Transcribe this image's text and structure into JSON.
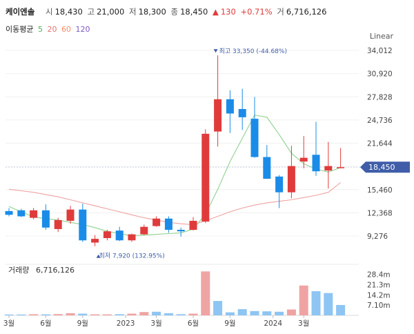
{
  "header": {
    "name": "케이엔솔",
    "open_label": "시",
    "open": "18,430",
    "high_label": "고",
    "high": "21,000",
    "low_label": "저",
    "low": "18,300",
    "close_label": "종",
    "close": "18,450",
    "change_arrow": "▲",
    "change": "130",
    "change_pct": "+0.71%",
    "volume_label": "거",
    "volume": "6,716,126"
  },
  "ma_legend": {
    "label": "이동평균",
    "items": [
      {
        "period": "5",
        "color": "#4caf50"
      },
      {
        "period": "20",
        "color": "#e57373"
      },
      {
        "period": "60",
        "color": "#ff8a65"
      },
      {
        "period": "120",
        "color": "#7e57c2"
      }
    ]
  },
  "scale_mode": "Linear",
  "colors": {
    "up": "#e03b3b",
    "down": "#1a8ce8",
    "ma5": "#8fd18f",
    "ma20": "#f0a0a0",
    "badge": "#3f5da8"
  },
  "chart_data": {
    "type": "candlestick",
    "title": "케이엔솔",
    "price_axis": {
      "ticks": [
        9276,
        12368,
        15460,
        18552,
        21644,
        24736,
        27828,
        30920,
        34012
      ],
      "tick_labels": [
        "9,276",
        "12,368",
        "15,460",
        "",
        "21,644",
        "24,736",
        "27,828",
        "30,920",
        "34,012"
      ],
      "range": [
        6400,
        35300
      ]
    },
    "current_price": {
      "value": 18450,
      "label": "18,450"
    },
    "high_marker": {
      "value": 33350,
      "label": "최고 33,350 (-44.68%)",
      "index": 17
    },
    "low_marker": {
      "value": 7920,
      "label": "최저 7,920 (132.95%)",
      "index": 7
    },
    "candles": [
      {
        "o": 12600,
        "h": 13000,
        "l": 11900,
        "c": 12100
      },
      {
        "o": 12700,
        "h": 12900,
        "l": 11800,
        "c": 11900
      },
      {
        "o": 11700,
        "h": 13000,
        "l": 11500,
        "c": 12700
      },
      {
        "o": 12700,
        "h": 13500,
        "l": 10100,
        "c": 10400
      },
      {
        "o": 10200,
        "h": 11700,
        "l": 9800,
        "c": 11400
      },
      {
        "o": 11300,
        "h": 13300,
        "l": 10900,
        "c": 12800
      },
      {
        "o": 12800,
        "h": 13600,
        "l": 8500,
        "c": 8700
      },
      {
        "o": 8400,
        "h": 9400,
        "l": 7920,
        "c": 8900
      },
      {
        "o": 9000,
        "h": 10100,
        "l": 8700,
        "c": 9900
      },
      {
        "o": 10000,
        "h": 10500,
        "l": 8600,
        "c": 8700
      },
      {
        "o": 8700,
        "h": 9600,
        "l": 8500,
        "c": 9500
      },
      {
        "o": 9500,
        "h": 10800,
        "l": 9400,
        "c": 10500
      },
      {
        "o": 10600,
        "h": 11900,
        "l": 10500,
        "c": 11600
      },
      {
        "o": 11600,
        "h": 11900,
        "l": 9700,
        "c": 10100
      },
      {
        "o": 10100,
        "h": 10400,
        "l": 9200,
        "c": 9900
      },
      {
        "o": 10100,
        "h": 11800,
        "l": 10000,
        "c": 11300
      },
      {
        "o": 11200,
        "h": 23500,
        "l": 11000,
        "c": 22900
      },
      {
        "o": 23200,
        "h": 33350,
        "l": 21200,
        "c": 27500
      },
      {
        "o": 27500,
        "h": 28700,
        "l": 23000,
        "c": 25600
      },
      {
        "o": 26200,
        "h": 28900,
        "l": 23400,
        "c": 25100
      },
      {
        "o": 24900,
        "h": 27800,
        "l": 19700,
        "c": 19800
      },
      {
        "o": 19800,
        "h": 21400,
        "l": 16900,
        "c": 16900
      },
      {
        "o": 17200,
        "h": 17400,
        "l": 13000,
        "c": 15100
      },
      {
        "o": 15100,
        "h": 21300,
        "l": 14300,
        "c": 18600
      },
      {
        "o": 19200,
        "h": 22600,
        "l": 18300,
        "c": 19700
      },
      {
        "o": 20100,
        "h": 24500,
        "l": 17300,
        "c": 17900
      },
      {
        "o": 18000,
        "h": 21800,
        "l": 15600,
        "c": 18600
      },
      {
        "o": 18430,
        "h": 21000,
        "l": 18300,
        "c": 18450
      }
    ],
    "ma5": [
      13200,
      12500,
      11800,
      11600,
      11400,
      11100,
      10800,
      10400,
      9900,
      9600,
      9300,
      9400,
      9500,
      9600,
      9700,
      10200,
      12200,
      15500,
      19200,
      22300,
      25400,
      25100,
      22800,
      20300,
      18900,
      18200,
      17800,
      18400
    ],
    "ma20": [
      15500,
      15300,
      15100,
      14800,
      14500,
      14100,
      13700,
      13300,
      12900,
      12500,
      12100,
      11700,
      11400,
      11100,
      10900,
      10800,
      11300,
      11900,
      12500,
      13000,
      13400,
      13700,
      13900,
      14100,
      14400,
      14700,
      15100,
      16400
    ],
    "volume": {
      "label": "거래량",
      "value": "6,716,126",
      "ticks": [
        7.1,
        14.2,
        21.3,
        28.4
      ],
      "tick_labels": [
        "7.10m",
        "14.2m",
        "21.3m",
        "28.4m"
      ],
      "max": 34,
      "bars": [
        {
          "v": 0.6,
          "up": false
        },
        {
          "v": 0.6,
          "up": false
        },
        {
          "v": 0.8,
          "up": true
        },
        {
          "v": 0.7,
          "up": false
        },
        {
          "v": 0.9,
          "up": true
        },
        {
          "v": 1.5,
          "up": true
        },
        {
          "v": 1.2,
          "up": false
        },
        {
          "v": 0.7,
          "up": true
        },
        {
          "v": 0.7,
          "up": true
        },
        {
          "v": 0.8,
          "up": false
        },
        {
          "v": 1.2,
          "up": true
        },
        {
          "v": 2.3,
          "up": true
        },
        {
          "v": 2.5,
          "up": false
        },
        {
          "v": 1.5,
          "up": false
        },
        {
          "v": 0.8,
          "up": false
        },
        {
          "v": 1.2,
          "up": true
        },
        {
          "v": 30.5,
          "up": true
        },
        {
          "v": 10.0,
          "up": false
        },
        {
          "v": 2.1,
          "up": false
        },
        {
          "v": 4.3,
          "up": false
        },
        {
          "v": 3.0,
          "up": false
        },
        {
          "v": 2.8,
          "up": false
        },
        {
          "v": 2.5,
          "up": false
        },
        {
          "v": 4.1,
          "up": true
        },
        {
          "v": 20.7,
          "up": true
        },
        {
          "v": 16.8,
          "up": false
        },
        {
          "v": 15.5,
          "up": false
        },
        {
          "v": 7.2,
          "up": false
        }
      ]
    },
    "x_axis": {
      "labels": [
        {
          "text": "3월",
          "index": 0
        },
        {
          "text": "6월",
          "index": 3
        },
        {
          "text": "9월",
          "index": 6
        },
        {
          "text": "2023",
          "index": 9.5
        },
        {
          "text": "3월",
          "index": 12
        },
        {
          "text": "6월",
          "index": 15
        },
        {
          "text": "9월",
          "index": 18
        },
        {
          "text": "2024",
          "index": 21.5
        },
        {
          "text": "3월",
          "index": 24
        }
      ]
    }
  }
}
